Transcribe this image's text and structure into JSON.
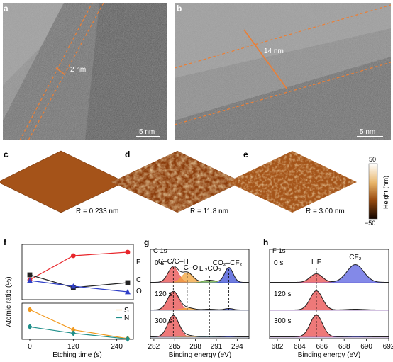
{
  "panels": {
    "a": {
      "label": "a",
      "thickness": "2 nm",
      "scale": "5 nm"
    },
    "b": {
      "label": "b",
      "thickness": "14 nm",
      "scale": "5 nm"
    },
    "c": {
      "label": "c",
      "roughness": "R = 0.233 nm"
    },
    "d": {
      "label": "d",
      "roughness": "R = 11.8 nm"
    },
    "e": {
      "label": "e",
      "roughness": "R = 3.00 nm"
    },
    "colorbar": {
      "max": "50",
      "min": "−50",
      "title": "Height (nm)"
    },
    "f": {
      "label": "f"
    },
    "g": {
      "label": "g",
      "title": "C 1s"
    },
    "h": {
      "label": "h",
      "title": "F 1s"
    }
  },
  "chart_data": [
    {
      "type": "line",
      "panel": "f-top",
      "ylabel": "Atomic ratio (%)",
      "x": [
        0,
        120,
        270
      ],
      "series": [
        {
          "name": "F",
          "color": "#e8262b",
          "marker": "circle",
          "values": [
            28,
            62,
            67
          ]
        },
        {
          "name": "C",
          "color": "#222222",
          "marker": "square",
          "values": [
            35,
            17,
            24
          ]
        },
        {
          "name": "O",
          "color": "#2f3fc7",
          "marker": "triangle",
          "values": [
            27,
            19,
            11
          ]
        }
      ]
    },
    {
      "type": "line",
      "panel": "f-bottom",
      "xlabel": "Etching time (s)",
      "xticks": [
        "0",
        "120",
        "240"
      ],
      "x": [
        0,
        120,
        270
      ],
      "series": [
        {
          "name": "S",
          "color": "#f29a1f",
          "marker": "diamond",
          "values": [
            7.8,
            2.5,
            0.2
          ]
        },
        {
          "name": "N",
          "color": "#1f8f8a",
          "marker": "diamond",
          "values": [
            3.3,
            1.6,
            0.1
          ]
        }
      ]
    },
    {
      "type": "area",
      "panel": "g",
      "xlabel": "Binding energy (eV)",
      "xticks": [
        "282",
        "285",
        "288",
        "291",
        "294"
      ],
      "rows": [
        "0 s",
        "120 s",
        "300 s"
      ],
      "peaks": [
        {
          "name": "C–C/C–H",
          "center": 284.8,
          "color": "#e84c4c"
        },
        {
          "name": "C–O",
          "center": 286.8,
          "color": "#f2a33a"
        },
        {
          "name": "Li₂CO₃",
          "center": 290.0,
          "color": "#6cae3a"
        },
        {
          "name": "CO₂–CF₂",
          "center": 292.8,
          "color": "#3d4fd6"
        }
      ]
    },
    {
      "type": "area",
      "panel": "h",
      "xlabel": "Binding energy (eV)",
      "xticks": [
        "682",
        "684",
        "686",
        "688",
        "690",
        "692"
      ],
      "rows": [
        "0 s",
        "120 s",
        "300 s"
      ],
      "peaks": [
        {
          "name": "LiF",
          "center": 685.5,
          "color": "#e84c4c"
        },
        {
          "name": "CF₂",
          "center": 689.0,
          "color": "#5a62e0"
        }
      ]
    }
  ]
}
